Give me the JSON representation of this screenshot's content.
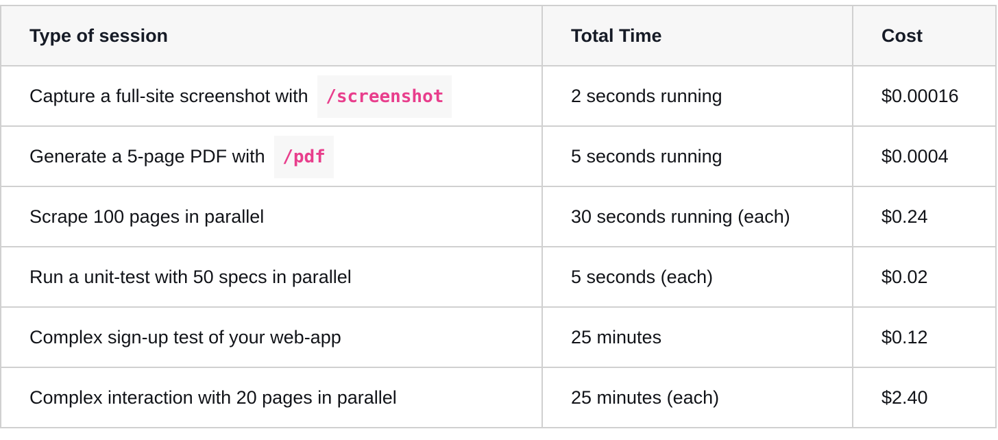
{
  "headers": [
    "Type of session",
    "Total Time",
    "Cost"
  ],
  "rows": [
    {
      "session": "Capture a full-site screenshot with",
      "code": "/screenshot",
      "time": "2 seconds running",
      "cost": "$0.00016"
    },
    {
      "session": "Generate a 5-page PDF with",
      "code": "/pdf",
      "time": "5 seconds running",
      "cost": "$0.0004"
    },
    {
      "session": "Scrape 100 pages in parallel",
      "time": "30 seconds running (each)",
      "cost": "$0.24"
    },
    {
      "session": "Run a unit-test with 50 specs in parallel",
      "time": "5 seconds (each)",
      "cost": "$0.02"
    },
    {
      "session": "Complex sign-up test of your web-app",
      "time": "25 minutes",
      "cost": "$0.12"
    },
    {
      "session": "Complex interaction with 20 pages in parallel",
      "time": "25 minutes (each)",
      "cost": "$2.40"
    }
  ],
  "colors": {
    "code": "#e83e8c",
    "header_bg": "#f7f7f7",
    "border": "#d0d0d0"
  }
}
